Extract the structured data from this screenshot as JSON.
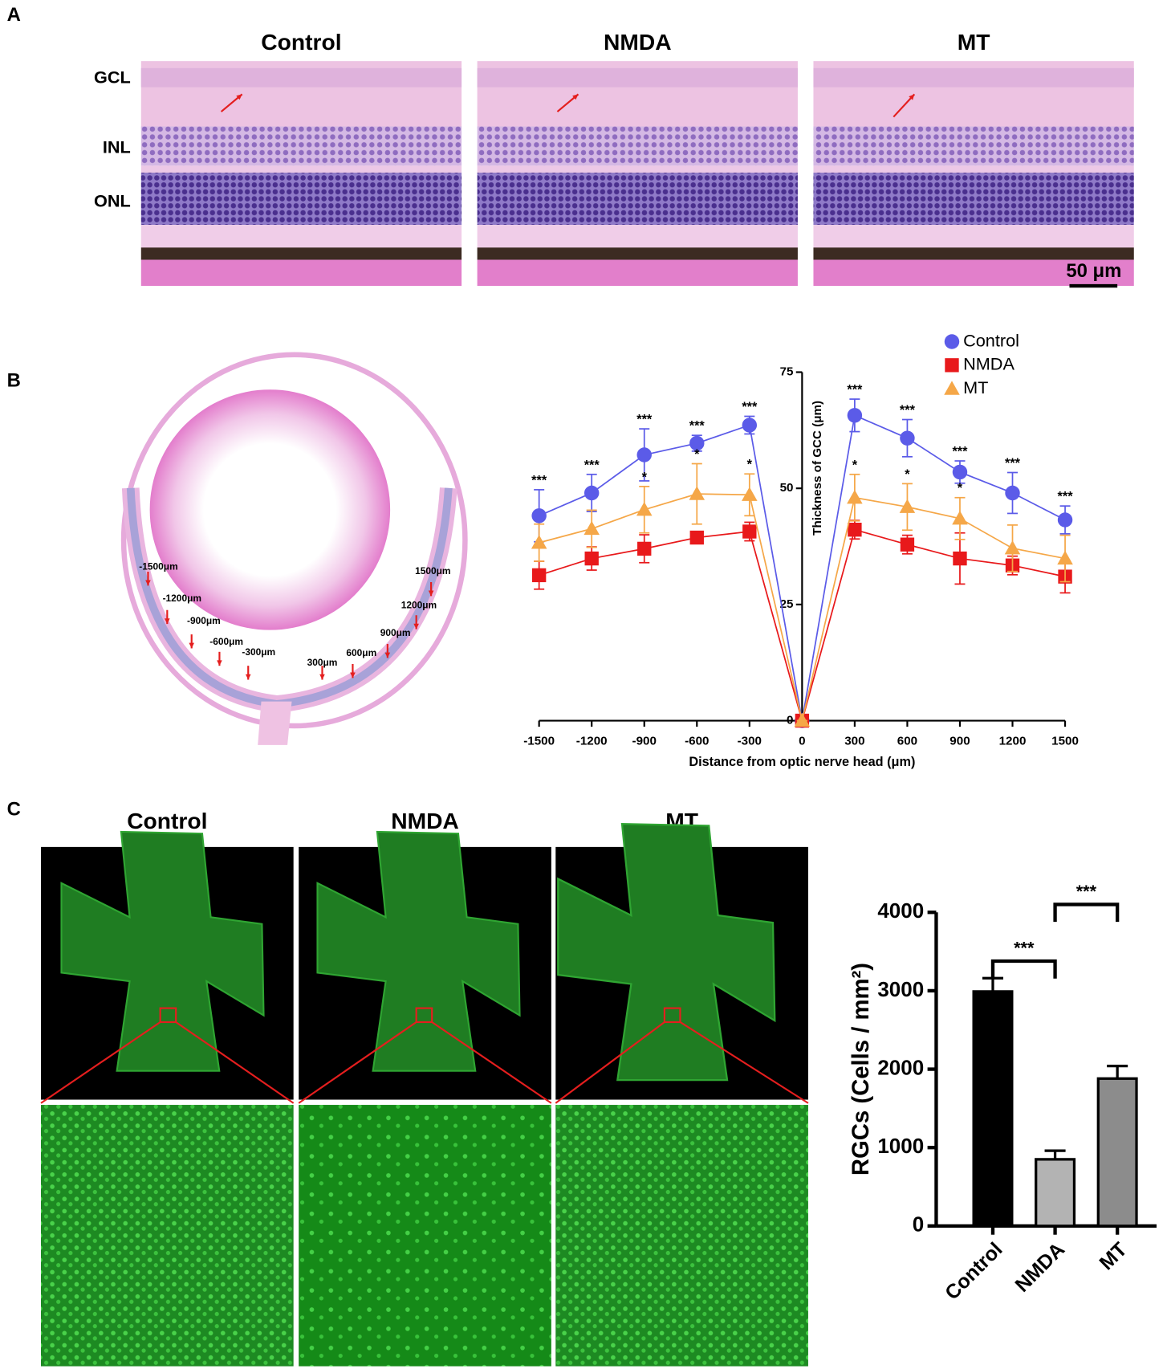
{
  "panels": {
    "A": {
      "label": "A",
      "groups": [
        "Control",
        "NMDA",
        "MT"
      ],
      "layers": [
        "GCL",
        "INL",
        "ONL"
      ],
      "scale_bar": "50 μm"
    },
    "B": {
      "label": "B",
      "positions": [
        "-1500μm",
        "-1200μm",
        "-900μm",
        "-600μm",
        "-300μm",
        "300μm",
        "600μm",
        "900μm",
        "1200μm",
        "1500μm"
      ]
    },
    "C": {
      "label": "C",
      "groups": [
        "Control",
        "NMDA",
        "MT"
      ]
    }
  },
  "chart_data": [
    {
      "type": "line",
      "x_label": "Distance from optic nerve head (μm)",
      "y_label": "Thickness of GCC (μm)",
      "x": [
        -1500,
        -1200,
        -900,
        -600,
        -300,
        0,
        300,
        600,
        900,
        1200,
        1500
      ],
      "xlim": [
        -1500,
        1500
      ],
      "xticks": [
        -1500,
        -1200,
        -900,
        -600,
        -300,
        0,
        300,
        600,
        900,
        1200,
        1500
      ],
      "ylim": [
        0,
        75
      ],
      "yticks": [
        0,
        25,
        50,
        75
      ],
      "legend": "top-right",
      "series": [
        {
          "name": "Control",
          "color": "#5b5be8",
          "marker": "circle",
          "values": [
            44.1,
            49.0,
            57.2,
            59.7,
            63.6,
            0,
            65.7,
            60.8,
            53.5,
            49.0,
            43.2
          ],
          "errors": [
            5.6,
            4,
            5.6,
            1.7,
            1.9,
            0,
            3.5,
            4,
            2.4,
            4.4,
            3
          ],
          "annotations": [
            "***",
            "***",
            "***",
            "***",
            "***",
            null,
            "***",
            "***",
            "***",
            "***",
            "***"
          ]
        },
        {
          "name": "NMDA",
          "color": "#e8191b",
          "marker": "square",
          "values": [
            31.3,
            34.9,
            37.0,
            39.4,
            40.7,
            0,
            41.1,
            37.9,
            34.9,
            33.4,
            31.0
          ],
          "errors": [
            3,
            2.5,
            3,
            1,
            2,
            0,
            2,
            2,
            5.5,
            2,
            3.5
          ],
          "annotations": [
            null,
            null,
            null,
            null,
            null,
            null,
            null,
            null,
            null,
            null,
            null
          ]
        },
        {
          "name": "MT",
          "color": "#f5a748",
          "marker": "triangle",
          "values": [
            38.3,
            41.3,
            45.4,
            48.8,
            48.6,
            0,
            48.0,
            46.0,
            43.5,
            37.1,
            34.9
          ],
          "errors": [
            4,
            4,
            5,
            6.5,
            4.5,
            0,
            5,
            5,
            4.5,
            5,
            5
          ],
          "annotations": [
            null,
            null,
            "*",
            "*",
            "*",
            null,
            "*",
            "*",
            "*",
            null,
            null
          ]
        }
      ]
    },
    {
      "type": "bar",
      "y_label": "RGCs (Cells / mm²)",
      "categories": [
        "Control",
        "NMDA",
        "MT"
      ],
      "values": [
        2990,
        850,
        1880
      ],
      "errors": [
        170,
        110,
        160
      ],
      "colors": [
        "#000000",
        "#b3b3b3",
        "#8c8c8c"
      ],
      "ylim": [
        0,
        4000
      ],
      "yticks": [
        0,
        1000,
        2000,
        3000,
        4000
      ],
      "comparisons": [
        {
          "from": "Control",
          "to": "NMDA",
          "label": "***"
        },
        {
          "from": "NMDA",
          "to": "MT",
          "label": "***"
        }
      ]
    }
  ]
}
